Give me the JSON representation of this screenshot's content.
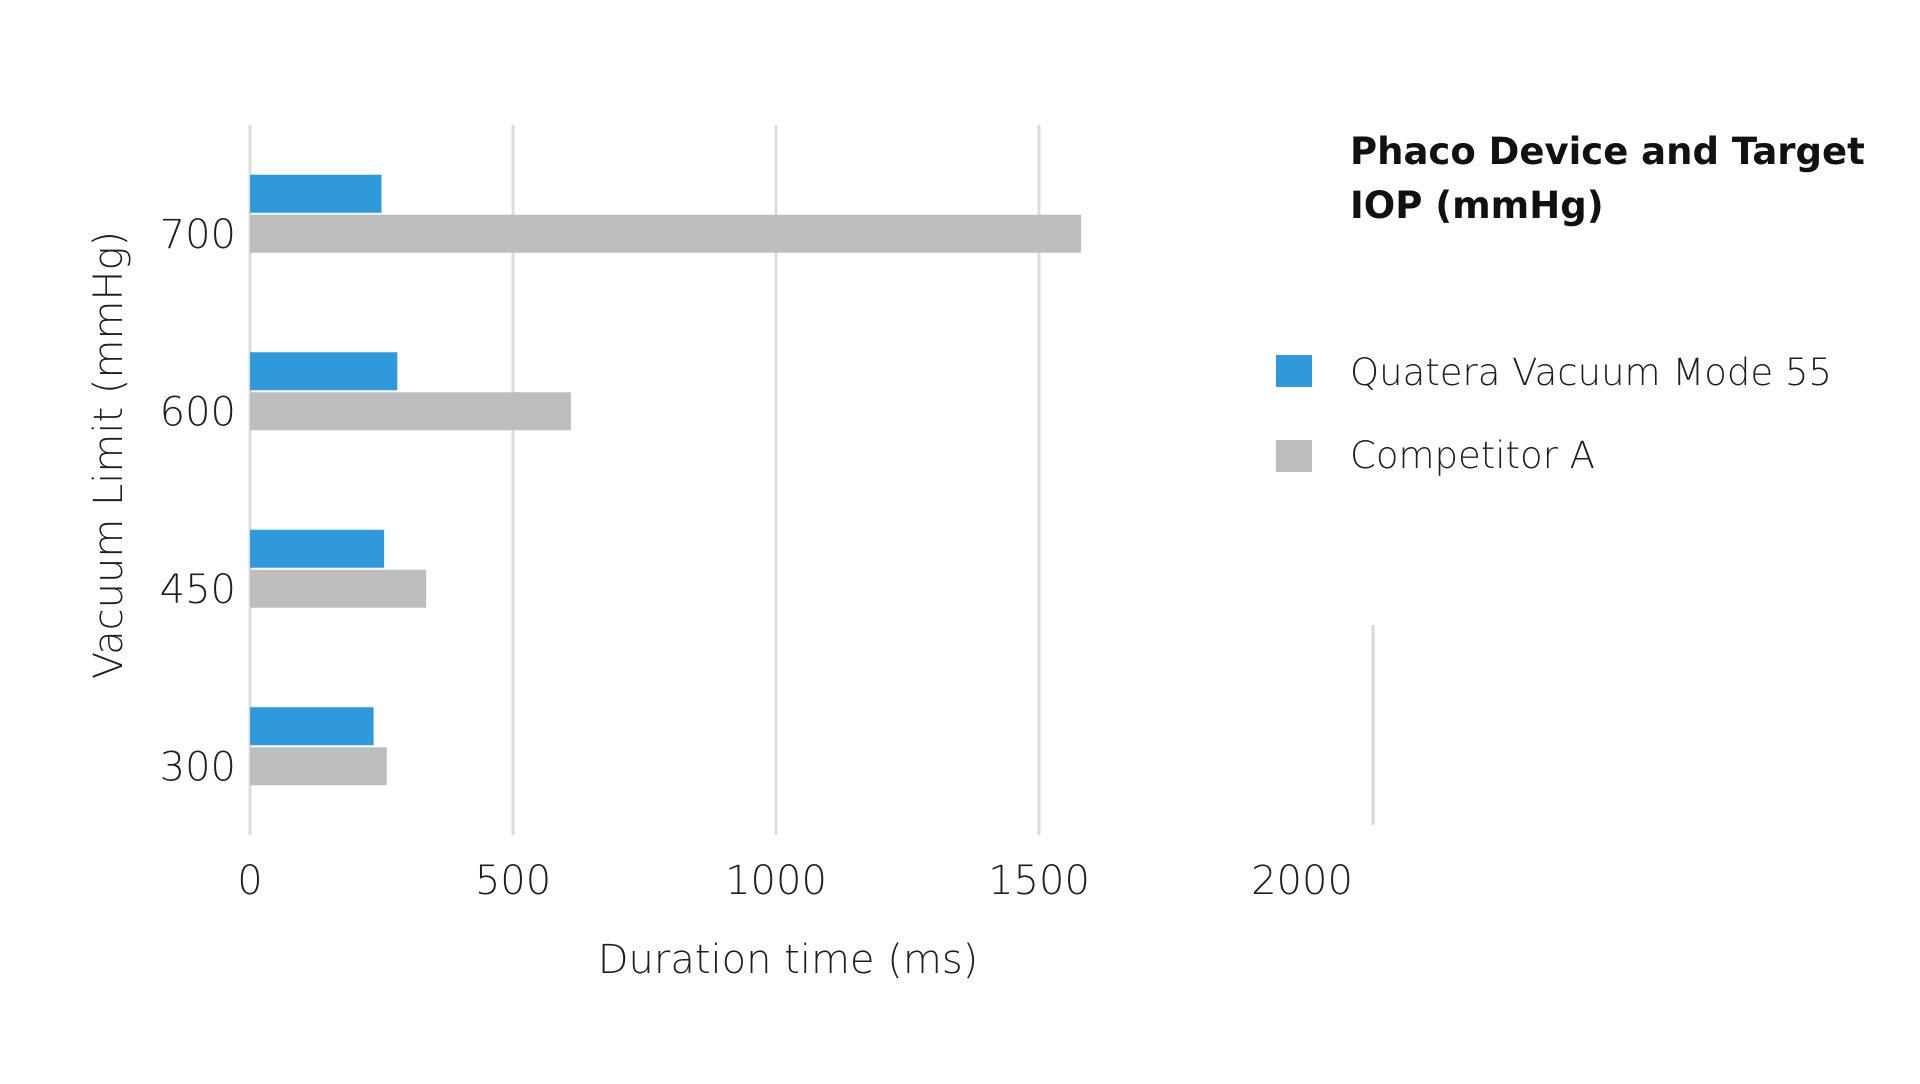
{
  "chart_data": {
    "type": "bar",
    "orientation": "horizontal",
    "categories": [
      "300",
      "450",
      "600",
      "700"
    ],
    "series": [
      {
        "name": "Quatera Vacuum Mode 55",
        "values": [
          235,
          255,
          280,
          250
        ],
        "color": "#2e99db"
      },
      {
        "name": "Competitor A",
        "values": [
          260,
          335,
          610,
          1580
        ],
        "color": "#bcbdbf"
      }
    ],
    "xlabel": "Duration time (ms)",
    "ylabel": "Vacuum Limit (mmHg)",
    "xlim": [
      0,
      2000
    ],
    "xticks": [
      0,
      500,
      1000,
      1500,
      2000
    ],
    "grid": true,
    "legend": {
      "title": [
        "Phaco Device and Target",
        "IOP (mmHg)"
      ],
      "placement": "right"
    }
  }
}
